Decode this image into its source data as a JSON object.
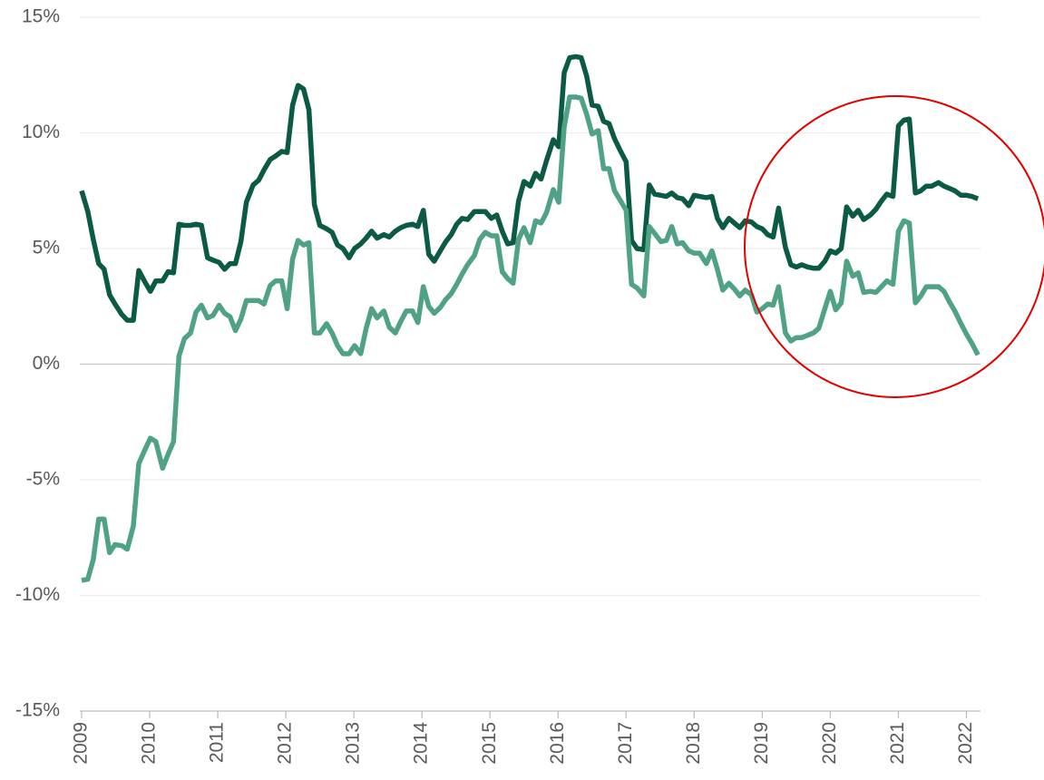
{
  "chart_data": {
    "type": "line",
    "x": [
      2009.0,
      2009.09,
      2009.17,
      2009.25,
      2009.33,
      2009.41,
      2009.49,
      2009.59,
      2009.67,
      2009.76,
      2009.84,
      2009.93,
      2010.01,
      2010.09,
      2010.19,
      2010.27,
      2010.35,
      2010.43,
      2010.51,
      2010.6,
      2010.68,
      2010.76,
      2010.85,
      2010.93,
      2011.02,
      2011.1,
      2011.18,
      2011.26,
      2011.34,
      2011.42,
      2011.52,
      2011.6,
      2011.68,
      2011.77,
      2011.85,
      2011.94,
      2012.02,
      2012.1,
      2012.18,
      2012.26,
      2012.34,
      2012.42,
      2012.5,
      2012.6,
      2012.68,
      2012.76,
      2012.84,
      2012.93,
      2013.01,
      2013.1,
      2013.18,
      2013.26,
      2013.34,
      2013.44,
      2013.52,
      2013.61,
      2013.69,
      2013.77,
      2013.86,
      2013.94,
      2014.02,
      2014.1,
      2014.18,
      2014.27,
      2014.35,
      2014.43,
      2014.51,
      2014.59,
      2014.67,
      2014.77,
      2014.85,
      2014.93,
      2015.02,
      2015.1,
      2015.18,
      2015.26,
      2015.34,
      2015.42,
      2015.5,
      2015.59,
      2015.67,
      2015.75,
      2015.83,
      2015.93,
      2016.01,
      2016.09,
      2016.17,
      2016.26,
      2016.34,
      2016.42,
      2016.5,
      2016.59,
      2016.67,
      2016.75,
      2016.83,
      2016.92,
      2017.0,
      2017.08,
      2017.16,
      2017.26,
      2017.34,
      2017.42,
      2017.51,
      2017.59,
      2017.67,
      2017.75,
      2017.83,
      2017.92,
      2018.0,
      2018.08,
      2018.18,
      2018.26,
      2018.34,
      2018.42,
      2018.51,
      2018.59,
      2018.67,
      2018.75,
      2018.84,
      2018.92,
      2019.0,
      2019.08,
      2019.16,
      2019.24,
      2019.34,
      2019.42,
      2019.5,
      2019.58,
      2019.67,
      2019.75,
      2019.83,
      2019.92,
      2020.0,
      2020.08,
      2020.16,
      2020.24,
      2020.33,
      2020.41,
      2020.49,
      2020.59,
      2020.67,
      2020.75,
      2020.83,
      2020.92,
      2021.0,
      2021.08,
      2021.16,
      2021.25,
      2021.33,
      2021.41,
      2021.49,
      2021.59,
      2021.67,
      2021.75,
      2021.83,
      2021.92,
      2022.0,
      2022.08,
      2022.17
    ],
    "series": [
      {
        "color": "#0b5a45",
        "values": [
          7.5,
          6.6,
          5.4,
          4.35,
          4.1,
          3.0,
          2.6,
          2.15,
          1.9,
          1.9,
          4.05,
          3.55,
          3.15,
          3.6,
          3.6,
          4.0,
          3.95,
          6.05,
          6.0,
          6.0,
          6.05,
          6.0,
          4.6,
          4.5,
          4.4,
          4.1,
          4.35,
          4.35,
          5.3,
          7.0,
          7.75,
          7.95,
          8.4,
          8.85,
          9.0,
          9.2,
          9.15,
          11.2,
          12.05,
          11.9,
          11.0,
          6.9,
          6.0,
          5.85,
          5.7,
          5.15,
          5.0,
          4.6,
          5.0,
          5.2,
          5.45,
          5.75,
          5.45,
          5.6,
          5.5,
          5.75,
          5.9,
          6.0,
          6.05,
          5.95,
          6.65,
          4.75,
          4.45,
          4.9,
          5.3,
          5.6,
          6.05,
          6.3,
          6.25,
          6.6,
          6.6,
          6.6,
          6.3,
          6.45,
          5.75,
          5.2,
          5.25,
          7.05,
          7.9,
          7.7,
          8.25,
          8.0,
          8.8,
          9.7,
          9.4,
          12.6,
          13.25,
          13.3,
          13.25,
          12.45,
          11.2,
          11.15,
          10.5,
          10.4,
          9.75,
          9.2,
          8.75,
          5.35,
          5.0,
          4.95,
          7.75,
          7.35,
          7.3,
          7.25,
          7.4,
          7.2,
          7.15,
          6.85,
          7.3,
          7.25,
          7.2,
          7.25,
          6.3,
          5.9,
          6.3,
          6.1,
          5.9,
          6.2,
          6.15,
          5.95,
          5.85,
          5.6,
          5.5,
          6.75,
          5.05,
          4.3,
          4.2,
          4.3,
          4.2,
          4.15,
          4.15,
          4.45,
          4.9,
          4.8,
          5.0,
          6.8,
          6.4,
          6.65,
          6.25,
          6.45,
          6.7,
          7.05,
          7.35,
          7.25,
          10.3,
          10.55,
          10.6,
          7.4,
          7.5,
          7.7,
          7.7,
          7.85,
          7.7,
          7.6,
          7.5,
          7.3,
          7.3,
          7.25,
          7.15
        ]
      },
      {
        "color": "#4fa283",
        "values": [
          -9.35,
          -9.3,
          -8.45,
          -6.7,
          -6.7,
          -8.15,
          -7.8,
          -7.85,
          -8.0,
          -7.0,
          -4.3,
          -3.7,
          -3.2,
          -3.35,
          -4.5,
          -3.9,
          -3.35,
          0.35,
          1.1,
          1.35,
          2.25,
          2.55,
          2.0,
          2.1,
          2.55,
          2.2,
          2.05,
          1.45,
          1.95,
          2.75,
          2.75,
          2.75,
          2.6,
          3.4,
          3.6,
          3.6,
          2.4,
          4.55,
          5.35,
          5.15,
          5.25,
          1.35,
          1.35,
          1.75,
          1.35,
          0.8,
          0.45,
          0.45,
          0.8,
          0.45,
          1.55,
          2.4,
          2.0,
          2.3,
          1.6,
          1.35,
          1.85,
          2.3,
          2.3,
          1.8,
          3.35,
          2.5,
          2.2,
          2.45,
          2.8,
          3.05,
          3.45,
          3.9,
          4.3,
          4.7,
          5.4,
          5.7,
          5.55,
          5.55,
          4.0,
          3.7,
          3.5,
          5.4,
          5.9,
          5.25,
          6.2,
          6.1,
          6.55,
          7.55,
          7.0,
          10.25,
          11.55,
          11.55,
          11.5,
          10.8,
          9.95,
          10.1,
          8.45,
          8.45,
          7.5,
          7.05,
          6.65,
          3.45,
          3.3,
          2.95,
          5.95,
          5.65,
          5.3,
          5.35,
          5.95,
          5.2,
          5.25,
          4.9,
          4.8,
          4.8,
          4.35,
          4.9,
          4.1,
          3.2,
          3.5,
          3.25,
          2.95,
          3.2,
          3.0,
          2.25,
          2.4,
          2.6,
          2.55,
          3.35,
          1.35,
          1.0,
          1.15,
          1.15,
          1.25,
          1.35,
          1.55,
          2.4,
          3.15,
          2.35,
          2.65,
          4.45,
          3.8,
          3.95,
          3.1,
          3.15,
          3.1,
          3.35,
          3.6,
          3.45,
          5.75,
          6.2,
          6.1,
          2.65,
          2.95,
          3.35,
          3.35,
          3.35,
          3.15,
          2.7,
          2.3,
          1.75,
          1.3,
          0.9,
          0.4
        ]
      }
    ],
    "xlim": [
      2009,
      2022.18
    ],
    "xticks": [
      2009,
      2010,
      2011,
      2012,
      2013,
      2014,
      2015,
      2016,
      2017,
      2018,
      2019,
      2020,
      2021,
      2022
    ],
    "ylim": [
      -15,
      15
    ],
    "yticks": [
      {
        "value": -15,
        "label": "-15%"
      },
      {
        "value": -10,
        "label": "-10%"
      },
      {
        "value": -5,
        "label": "-5%"
      },
      {
        "value": 0,
        "label": "0%"
      },
      {
        "value": 5,
        "label": "5%"
      },
      {
        "value": 10,
        "label": "10%"
      },
      {
        "value": 15,
        "label": "15%"
      }
    ],
    "grid": true
  }
}
